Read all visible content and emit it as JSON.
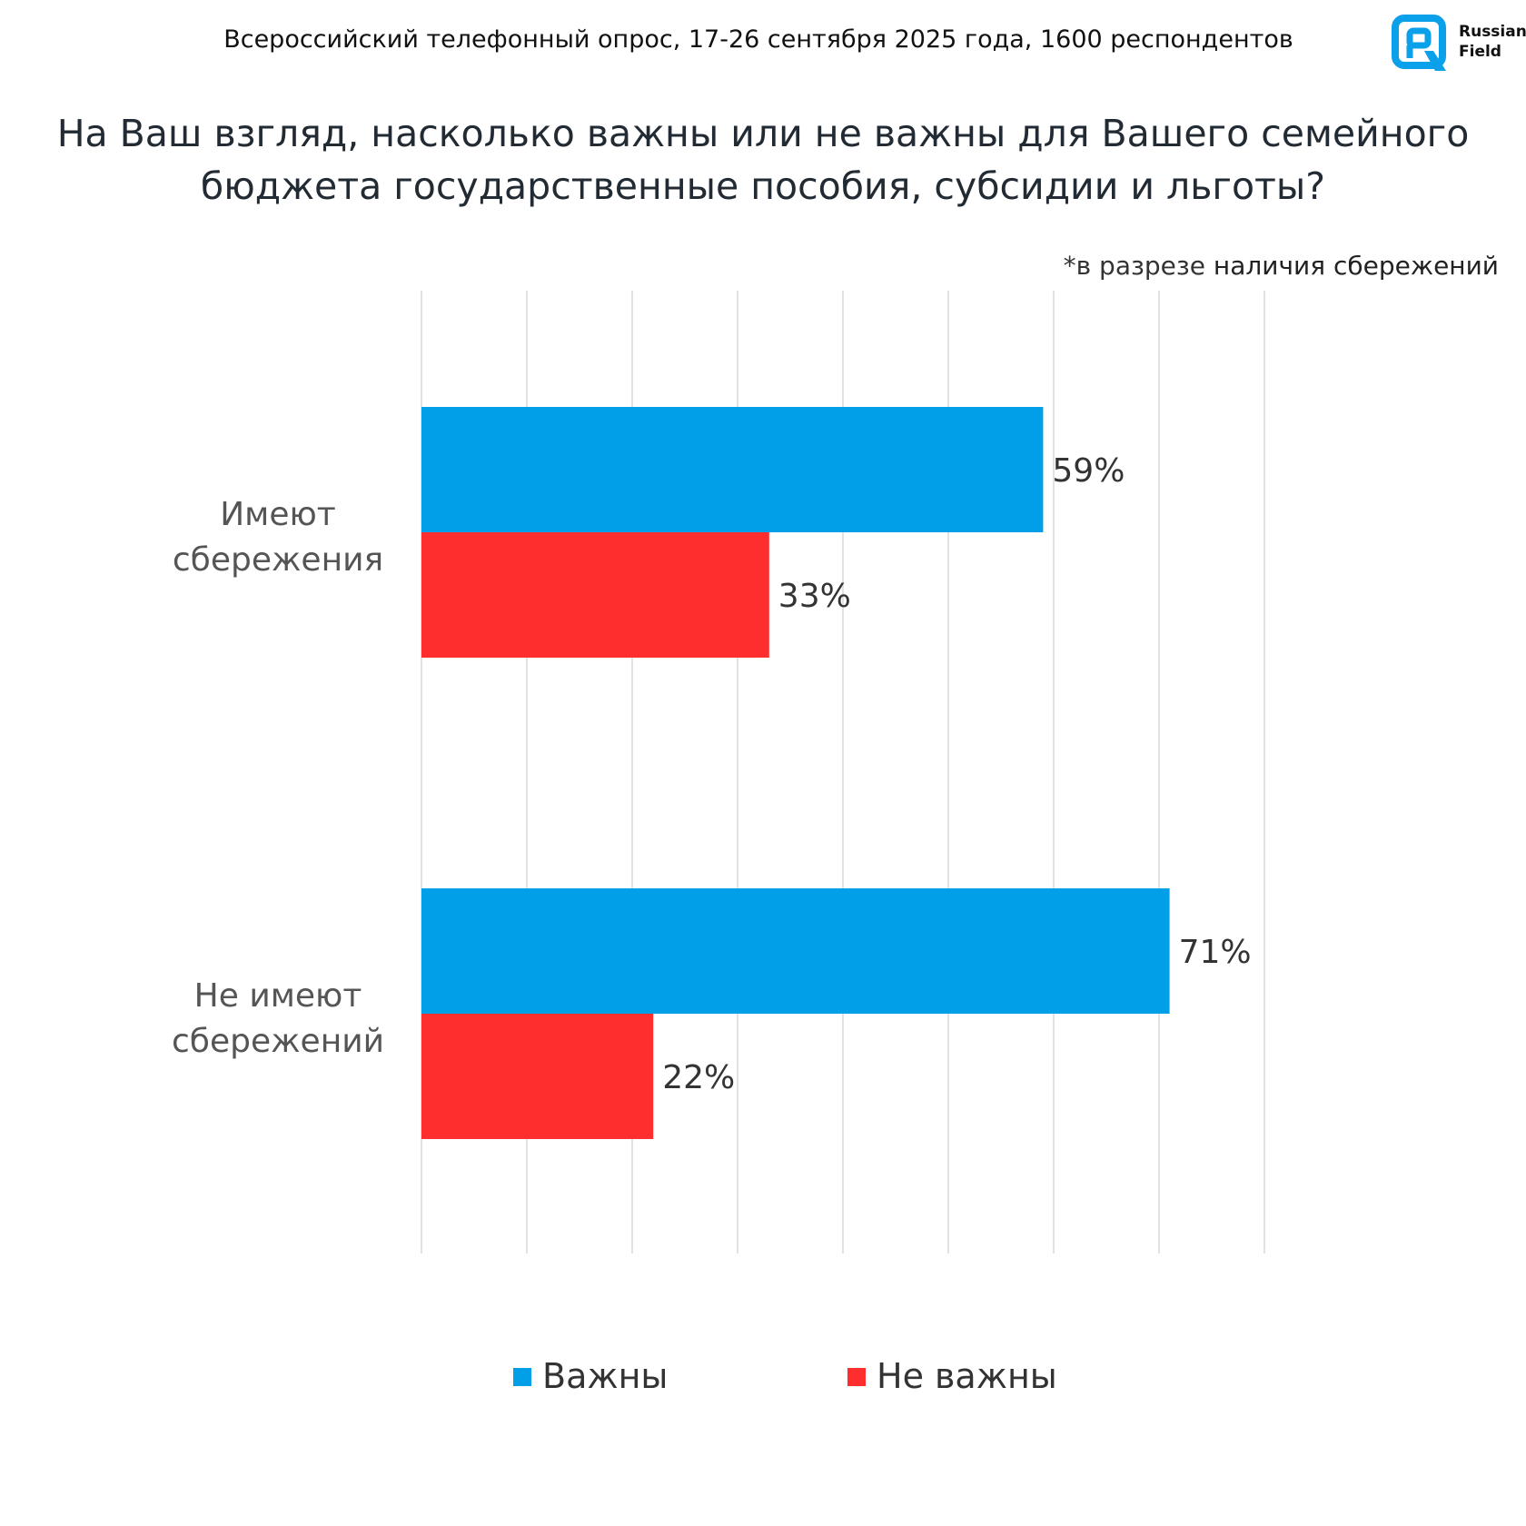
{
  "header": {
    "survey_line": "Всероссийский телефонный опрос, 17-26 сентября 2025 года, 1600 респондентов",
    "logo_line1": "Russian",
    "logo_line2": "Field"
  },
  "colors": {
    "important": "#009fe8",
    "not_important": "#ff2e2e",
    "logo": "#0aa0ea"
  },
  "chart_data": {
    "type": "bar",
    "orientation": "horizontal",
    "title": "На Ваш взгляд, насколько важны или не важны для Вашего семейного бюджета государственные пособия, субсидии и льготы?",
    "subtitle_prefix": "*в разрезе",
    "subtitle_main": "наличия сбережений",
    "categories": [
      "Имеют сбережения",
      "Не имеют сбережений"
    ],
    "series": [
      {
        "name": "Важны",
        "values": [
          59,
          71
        ]
      },
      {
        "name": "Не важны",
        "values": [
          33,
          22
        ]
      }
    ],
    "value_suffix": "%",
    "xlim": [
      0,
      80
    ],
    "gridlines": true,
    "legend_position": "bottom"
  }
}
